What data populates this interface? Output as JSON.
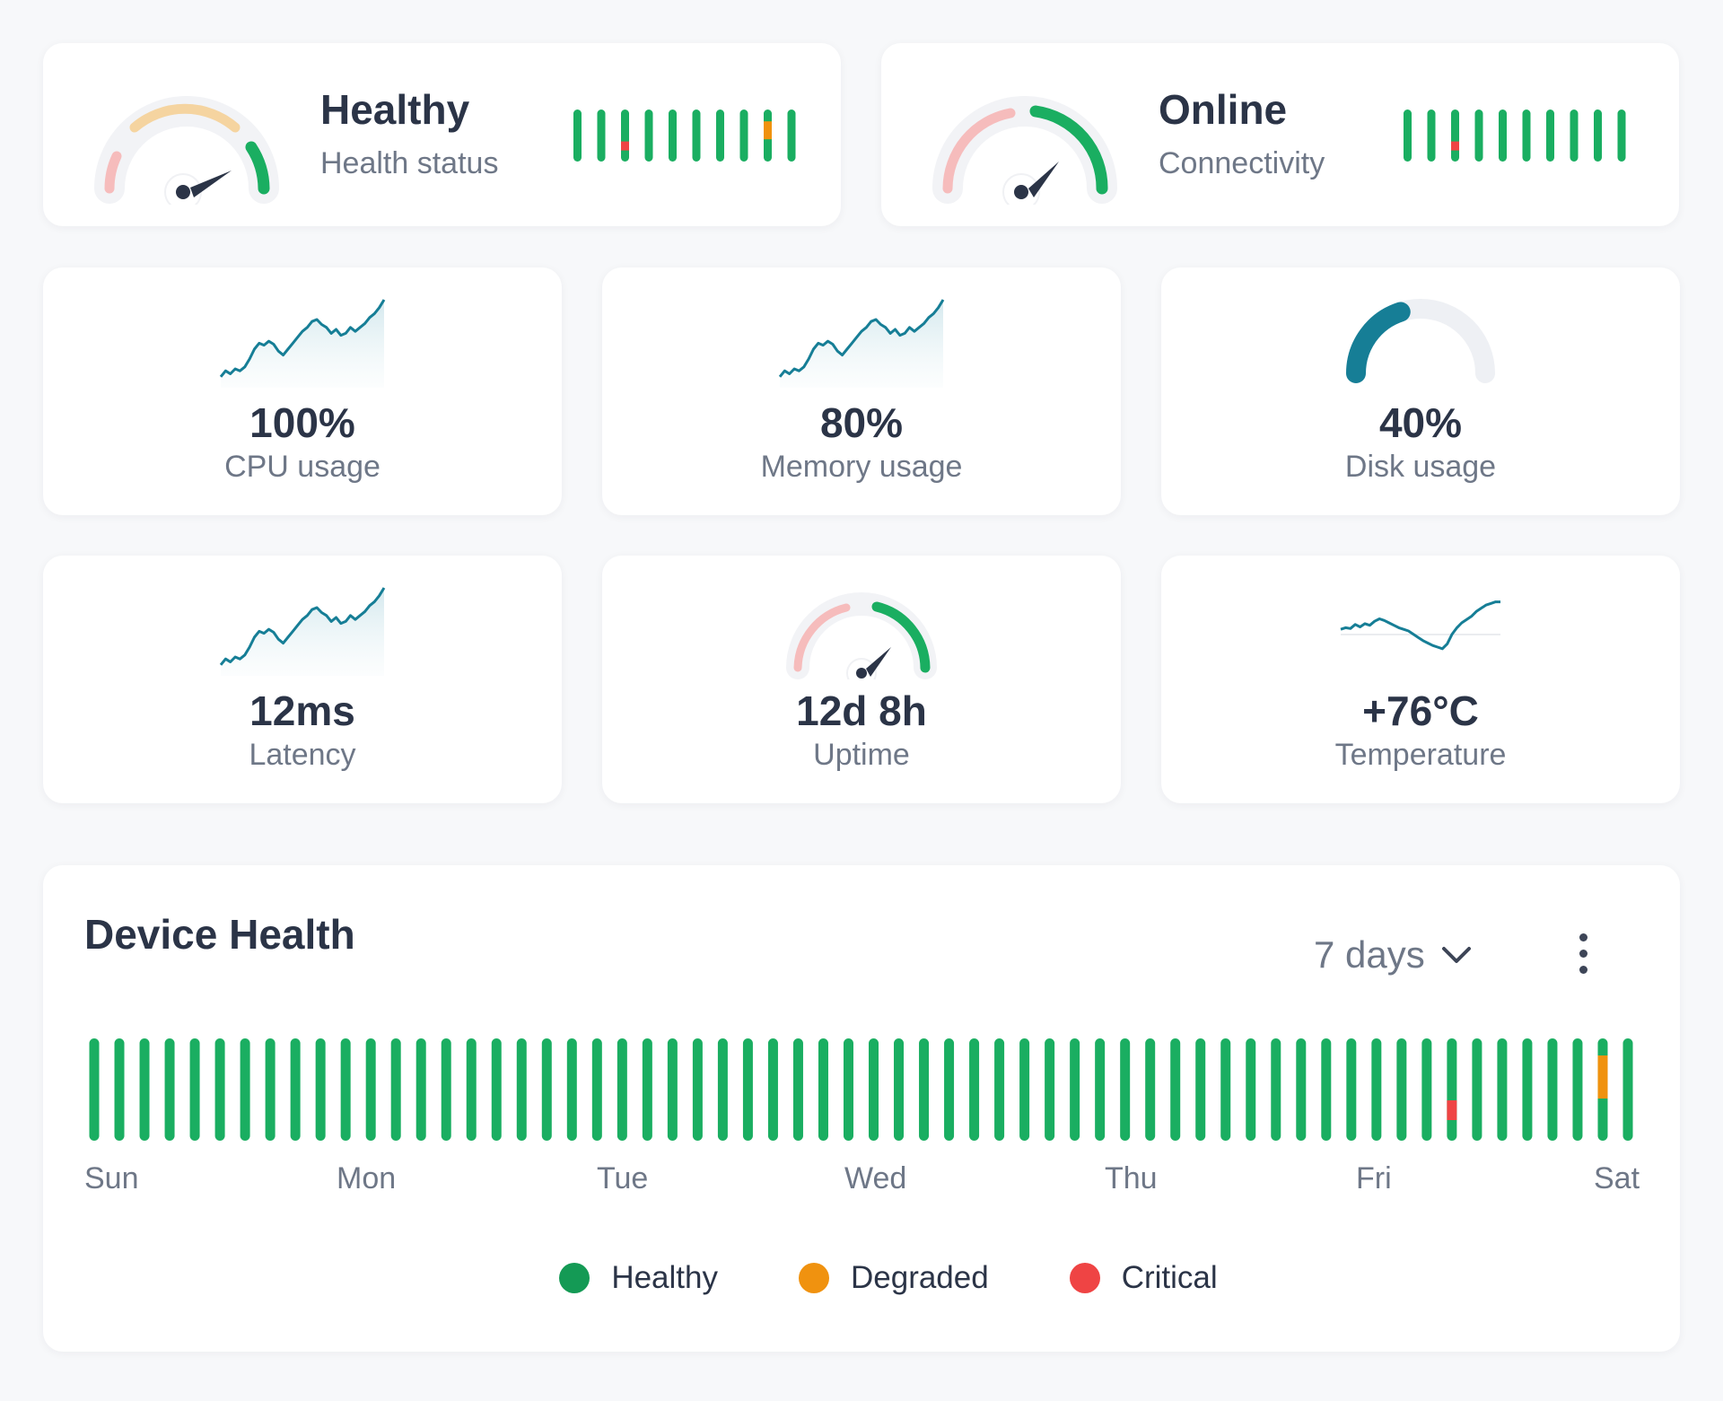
{
  "colors": {
    "healthy": "#1aae61",
    "degraded": "#f0920f",
    "critical": "#ef4444",
    "sparkline": "#167e96",
    "gauge_track": "#eef0f4",
    "needle": "#2b3447",
    "legend_healthy": "#149a55"
  },
  "health_card": {
    "title": "Healthy",
    "subtitle": "Health status",
    "bars": [
      {
        "state": "healthy"
      },
      {
        "state": "healthy"
      },
      {
        "state": "critical",
        "at": 0.7
      },
      {
        "state": "healthy"
      },
      {
        "state": "healthy"
      },
      {
        "state": "healthy"
      },
      {
        "state": "healthy"
      },
      {
        "state": "healthy"
      },
      {
        "state": "degraded",
        "at": 0.4
      },
      {
        "state": "healthy"
      }
    ]
  },
  "connectivity_card": {
    "title": "Online",
    "subtitle": "Connectivity",
    "bars": [
      {
        "state": "healthy"
      },
      {
        "state": "healthy"
      },
      {
        "state": "critical",
        "at": 0.7
      },
      {
        "state": "healthy"
      },
      {
        "state": "healthy"
      },
      {
        "state": "healthy"
      },
      {
        "state": "healthy"
      },
      {
        "state": "healthy"
      },
      {
        "state": "healthy"
      },
      {
        "state": "healthy"
      }
    ]
  },
  "metrics": {
    "cpu": {
      "value": "100%",
      "label": "CPU usage"
    },
    "memory": {
      "value": "80%",
      "label": "Memory usage"
    },
    "disk": {
      "value": "40%",
      "label": "Disk usage",
      "fraction": 0.4
    },
    "latency": {
      "value": "12ms",
      "label": "Latency"
    },
    "uptime": {
      "value": "12d 8h",
      "label": "Uptime"
    },
    "temperature": {
      "value": "+76°C",
      "label": "Temperature"
    }
  },
  "device_health": {
    "title": "Device Health",
    "range": "7 days",
    "days": [
      "Sun",
      "Mon",
      "Tue",
      "Wed",
      "Thu",
      "Fri",
      "Sat"
    ],
    "legend": [
      "Healthy",
      "Degraded",
      "Critical"
    ],
    "bar_count": 62,
    "issues": [
      {
        "index": 54,
        "state": "critical"
      },
      {
        "index": 60,
        "state": "degraded"
      }
    ]
  }
}
